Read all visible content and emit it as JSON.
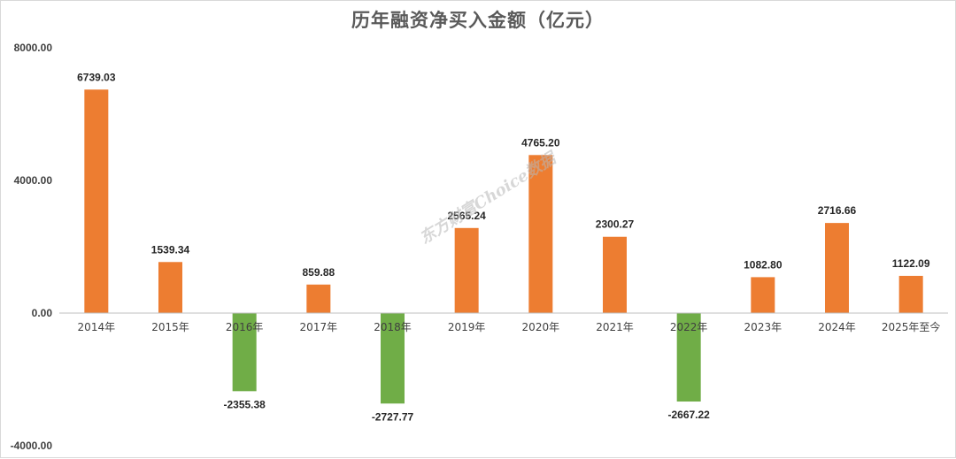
{
  "chart_data": {
    "type": "bar",
    "title": "历年融资净买入金额（亿元）",
    "categories": [
      "2014年",
      "2015年",
      "2016年",
      "2017年",
      "2018年",
      "2019年",
      "2020年",
      "2021年",
      "2022年",
      "2023年",
      "2024年",
      "2025年至今"
    ],
    "values": [
      6739.03,
      1539.34,
      -2355.38,
      859.88,
      -2727.77,
      2565.24,
      4765.2,
      2300.27,
      -2667.22,
      1082.8,
      2716.66,
      1122.09
    ],
    "value_labels": [
      "6739.03",
      "1539.34",
      "-2355.38",
      "859.88",
      "-2727.77",
      "2565.24",
      "4765.20",
      "2300.27",
      "-2667.22",
      "1082.80",
      "2716.66",
      "1122.09"
    ],
    "ylim": [
      -4000,
      8000
    ],
    "yticks": [
      8000,
      4000,
      0,
      -4000
    ],
    "ytick_labels": [
      "8000.00",
      "4000.00",
      "0.00",
      "-4000.00"
    ],
    "xlabel": "",
    "ylabel": "",
    "grid": false,
    "legend": "none",
    "colors": {
      "positive": "#ed7d31",
      "negative": "#70ad47",
      "axis": "#bfbfbf"
    },
    "watermark": "东方财富Choice数据"
  }
}
